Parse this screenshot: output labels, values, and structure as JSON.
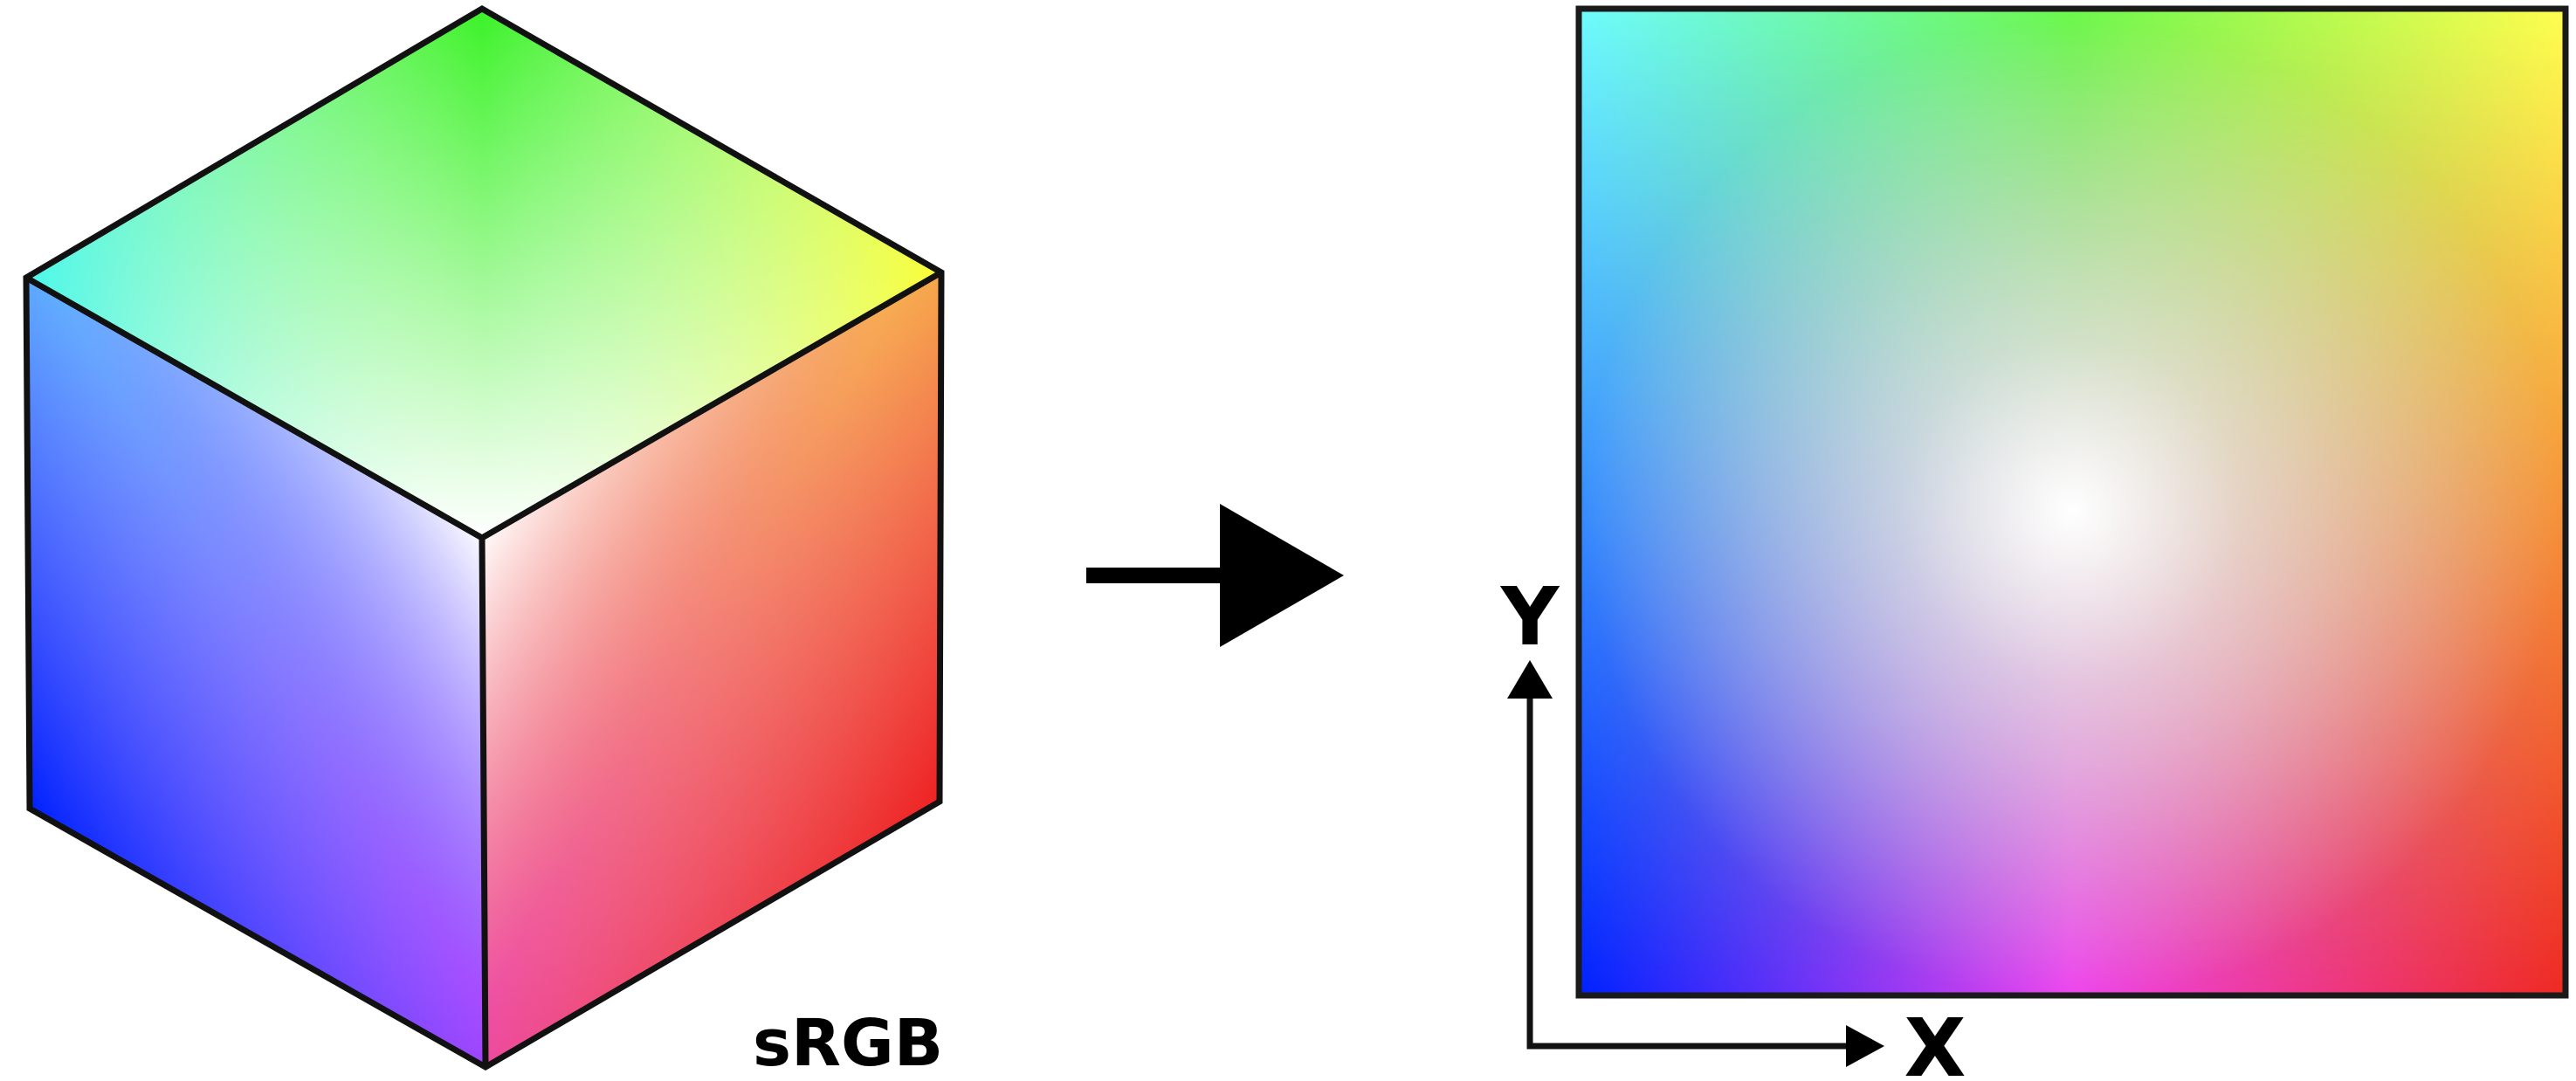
{
  "cube": {
    "label": "sRGB",
    "corner_colors": {
      "white": "#ffffff",
      "green": "#00ff00",
      "yellow": "#ffff00",
      "cyan": "#00ffff",
      "blue": "#0000ff",
      "red": "#ff0000",
      "magenta": "#ff00ff"
    }
  },
  "arrow": {
    "color": "#000000"
  },
  "square": {
    "corner_colors": {
      "top_left": "#00ffff",
      "top_center": "#00ff00",
      "top_right": "#ffff00",
      "center": "#ffffff",
      "bottom_left": "#0000ff",
      "bottom_center": "#ff00ff",
      "bottom_right": "#ff0000"
    }
  },
  "axes": {
    "x_label": "X",
    "y_label": "Y"
  }
}
